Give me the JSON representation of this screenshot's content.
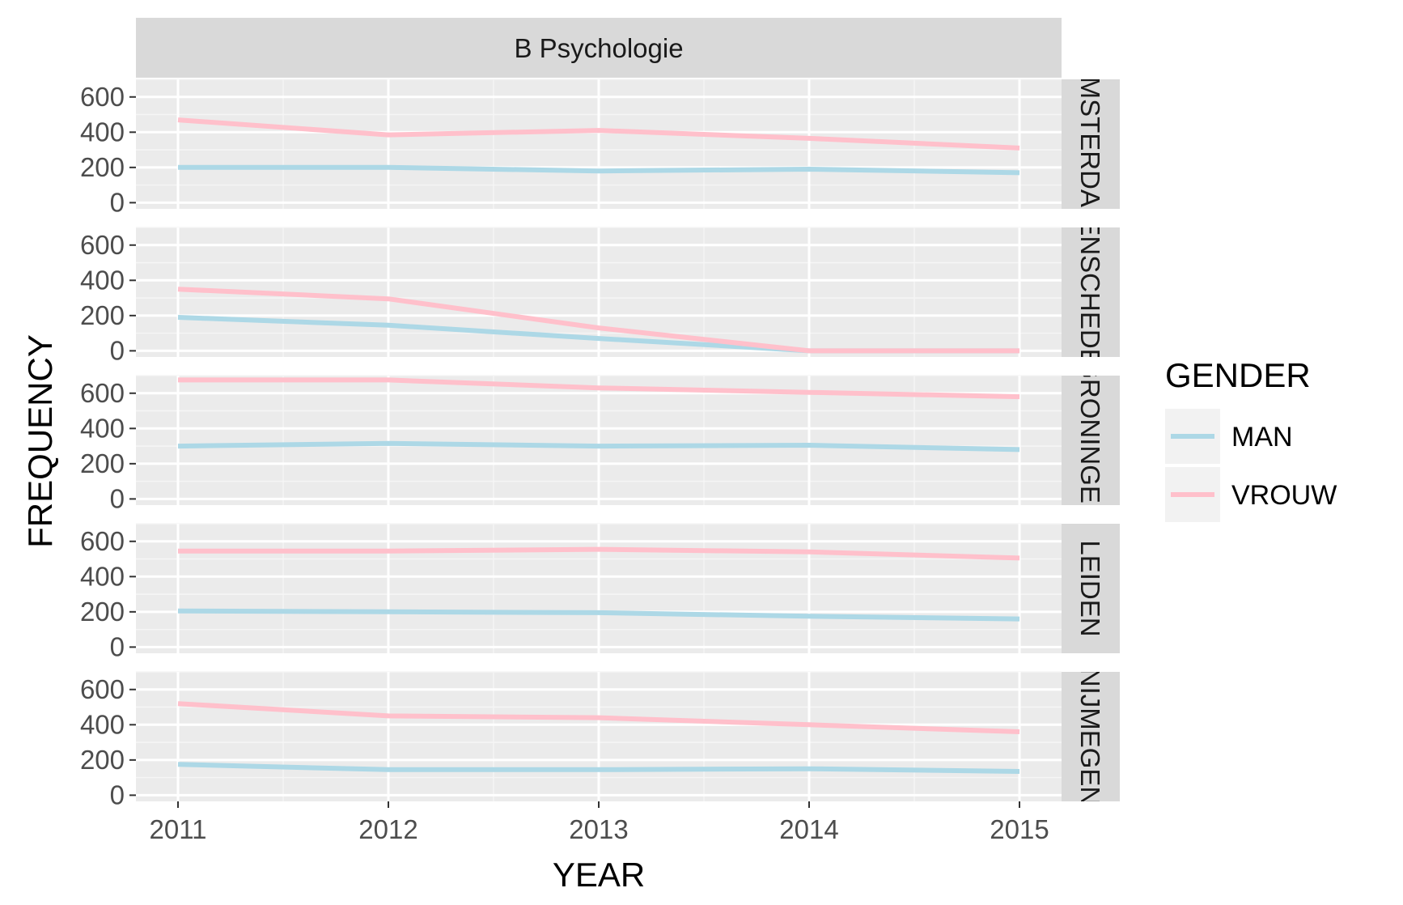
{
  "chart_data": {
    "type": "line",
    "facet_title": "B Psychologie",
    "xlabel": "YEAR",
    "ylabel": "FREQUENCY",
    "x": [
      2011,
      2012,
      2013,
      2014,
      2015
    ],
    "x_ticks": [
      "2011",
      "2012",
      "2013",
      "2014",
      "2015"
    ],
    "ylim": [
      0,
      700
    ],
    "y_ticks": [
      "0",
      "200",
      "400",
      "600"
    ],
    "grid": true,
    "legend": {
      "title": "GENDER",
      "placement": "right",
      "items": [
        {
          "label": "MAN",
          "color": "#add8e6"
        },
        {
          "label": "VROUW",
          "color": "#ffc0cb"
        }
      ]
    },
    "panels": [
      {
        "label": "AMSTERDAM",
        "series": [
          {
            "name": "MAN",
            "values": [
              200,
              200,
              180,
              190,
              170
            ]
          },
          {
            "name": "VROUW",
            "values": [
              470,
              385,
              410,
              365,
              310
            ]
          }
        ]
      },
      {
        "label": "ENSCHEDE",
        "series": [
          {
            "name": "MAN",
            "values": [
              190,
              145,
              70,
              0,
              0
            ]
          },
          {
            "name": "VROUW",
            "values": [
              350,
              295,
              130,
              0,
              0
            ]
          }
        ]
      },
      {
        "label": "GRONINGEN",
        "series": [
          {
            "name": "MAN",
            "values": [
              300,
              315,
              300,
              305,
              280
            ]
          },
          {
            "name": "VROUW",
            "values": [
              675,
              675,
              630,
              605,
              580
            ]
          }
        ]
      },
      {
        "label": "LEIDEN",
        "series": [
          {
            "name": "MAN",
            "values": [
              205,
              200,
              195,
              175,
              160
            ]
          },
          {
            "name": "VROUW",
            "values": [
              545,
              545,
              555,
              540,
              505
            ]
          }
        ]
      },
      {
        "label": "NIJMEGEN",
        "series": [
          {
            "name": "MAN",
            "values": [
              175,
              145,
              145,
              150,
              135
            ]
          },
          {
            "name": "VROUW",
            "values": [
              520,
              450,
              440,
              400,
              360
            ]
          }
        ]
      }
    ]
  }
}
